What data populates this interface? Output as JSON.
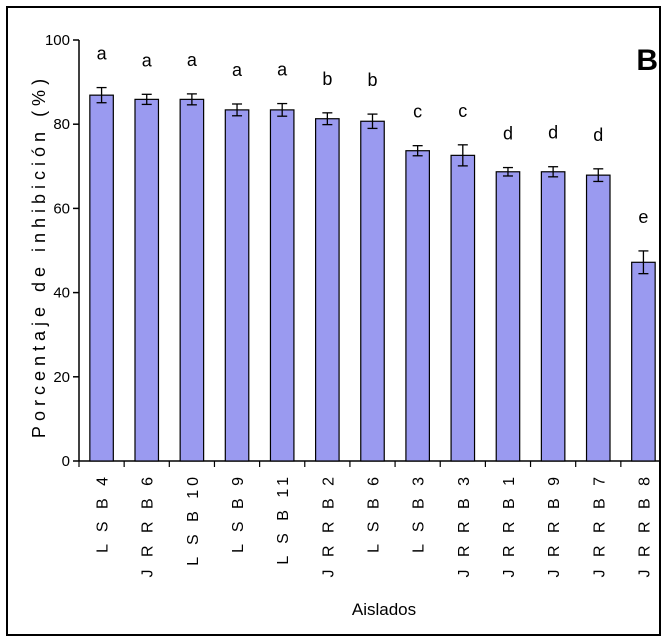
{
  "chart_data": {
    "type": "bar",
    "panel_label": "B",
    "ylabel": "Porcentaje de inhibición (%)",
    "xlabel": "Aislados",
    "ylim": [
      0,
      100
    ],
    "yticks": [
      0,
      20,
      40,
      60,
      80,
      100
    ],
    "categories": [
      "LSB4",
      "JRRB6",
      "LSB10",
      "LSB9",
      "LSB11",
      "JRRB2",
      "LSB6",
      "LSB3",
      "JRRB3",
      "JRRB1",
      "JRRB9",
      "JRRB7",
      "JRRB8"
    ],
    "category_labels": [
      "L S B 4",
      "J R R B 6",
      "L S B 10",
      "L S B 9",
      "L S B 11",
      "J R R B 2",
      "L S B 6",
      "L S B 3",
      "J R R B 3",
      "J R R B 1",
      "J R R B 9",
      "J R R B 7",
      "J R R B 8"
    ],
    "values": [
      86.9,
      85.9,
      85.9,
      83.4,
      83.4,
      81.3,
      80.7,
      73.7,
      72.6,
      68.7,
      68.7,
      67.9,
      47.2
    ],
    "errors": [
      1.8,
      1.2,
      1.3,
      1.4,
      1.5,
      1.4,
      1.7,
      1.2,
      2.5,
      1.0,
      1.2,
      1.5,
      2.7
    ],
    "significance": [
      "a",
      "a",
      "a",
      "a",
      "a",
      "b",
      "b",
      "c",
      "c",
      "d",
      "d",
      "d",
      "e"
    ],
    "bar_color": "#9a9af0",
    "grid": false,
    "legend": "none"
  }
}
